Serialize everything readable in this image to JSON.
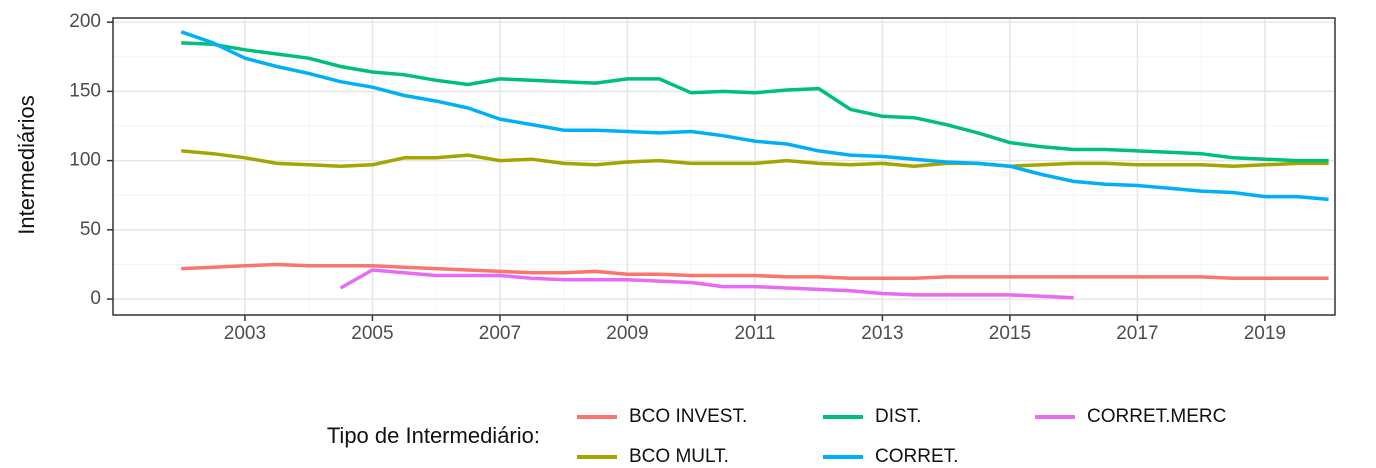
{
  "chart_data": {
    "type": "line",
    "y_label": "Intermediários",
    "legend_title": "Tipo de Intermediário:",
    "legend_position": "bottom",
    "grid": true,
    "x": [
      2002,
      2002.5,
      2003,
      2003.5,
      2004,
      2004.5,
      2005,
      2005.5,
      2006,
      2006.5,
      2007,
      2007.5,
      2008,
      2008.5,
      2009,
      2009.5,
      2010,
      2010.5,
      2011,
      2011.5,
      2012,
      2012.5,
      2013,
      2013.5,
      2014,
      2014.5,
      2015,
      2015.5,
      2016,
      2016.5,
      2017,
      2017.5,
      2018,
      2018.5,
      2019,
      2019.5,
      2020
    ],
    "xlim": [
      2000.93,
      2020.1
    ],
    "xticks": [
      2003,
      2005,
      2007,
      2009,
      2011,
      2013,
      2015,
      2017,
      2019
    ],
    "ylim": [
      -11.5,
      203
    ],
    "yticks": [
      0,
      50,
      100,
      150,
      200
    ],
    "series": [
      {
        "name": "BCO INVEST.",
        "color": "#F8766D",
        "values": [
          22,
          23,
          24,
          25,
          24,
          24,
          24,
          23,
          22,
          21,
          20,
          19,
          19,
          20,
          18,
          18,
          17,
          17,
          17,
          16,
          16,
          15,
          15,
          15,
          16,
          16,
          16,
          16,
          16,
          16,
          16,
          16,
          16,
          15,
          15,
          15,
          15
        ]
      },
      {
        "name": "BCO MULT.",
        "color": "#A3A500",
        "values": [
          107,
          105,
          102,
          98,
          97,
          96,
          97,
          102,
          102,
          104,
          100,
          101,
          98,
          97,
          99,
          100,
          98,
          98,
          98,
          100,
          98,
          97,
          98,
          96,
          98,
          98,
          96,
          97,
          98,
          98,
          97,
          97,
          97,
          96,
          97,
          98,
          98
        ]
      },
      {
        "name": "DIST.",
        "color": "#00BF7D",
        "values": [
          185,
          184,
          180,
          177,
          174,
          168,
          164,
          162,
          158,
          155,
          159,
          158,
          157,
          156,
          159,
          159,
          149,
          150,
          149,
          151,
          152,
          137,
          132,
          131,
          126,
          120,
          113,
          110,
          108,
          108,
          107,
          106,
          105,
          102,
          101,
          100,
          100
        ]
      },
      {
        "name": "CORRET.",
        "color": "#00B0F6",
        "values": [
          193,
          185,
          174,
          168,
          163,
          157,
          153,
          147,
          143,
          138,
          130,
          126,
          122,
          122,
          121,
          120,
          121,
          118,
          114,
          112,
          107,
          104,
          103,
          101,
          99,
          98,
          96,
          90,
          85,
          83,
          82,
          80,
          78,
          77,
          74,
          74,
          72
        ]
      },
      {
        "name": "CORRET.MERC",
        "color": "#E76BF3",
        "values": [
          null,
          null,
          null,
          null,
          null,
          8,
          21,
          19,
          17,
          17,
          17,
          15,
          14,
          14,
          14,
          13,
          12,
          9,
          9,
          8,
          7,
          6,
          4,
          3,
          3,
          3,
          3,
          2,
          1,
          null,
          null,
          null,
          null,
          null,
          null,
          null,
          null
        ]
      }
    ]
  }
}
